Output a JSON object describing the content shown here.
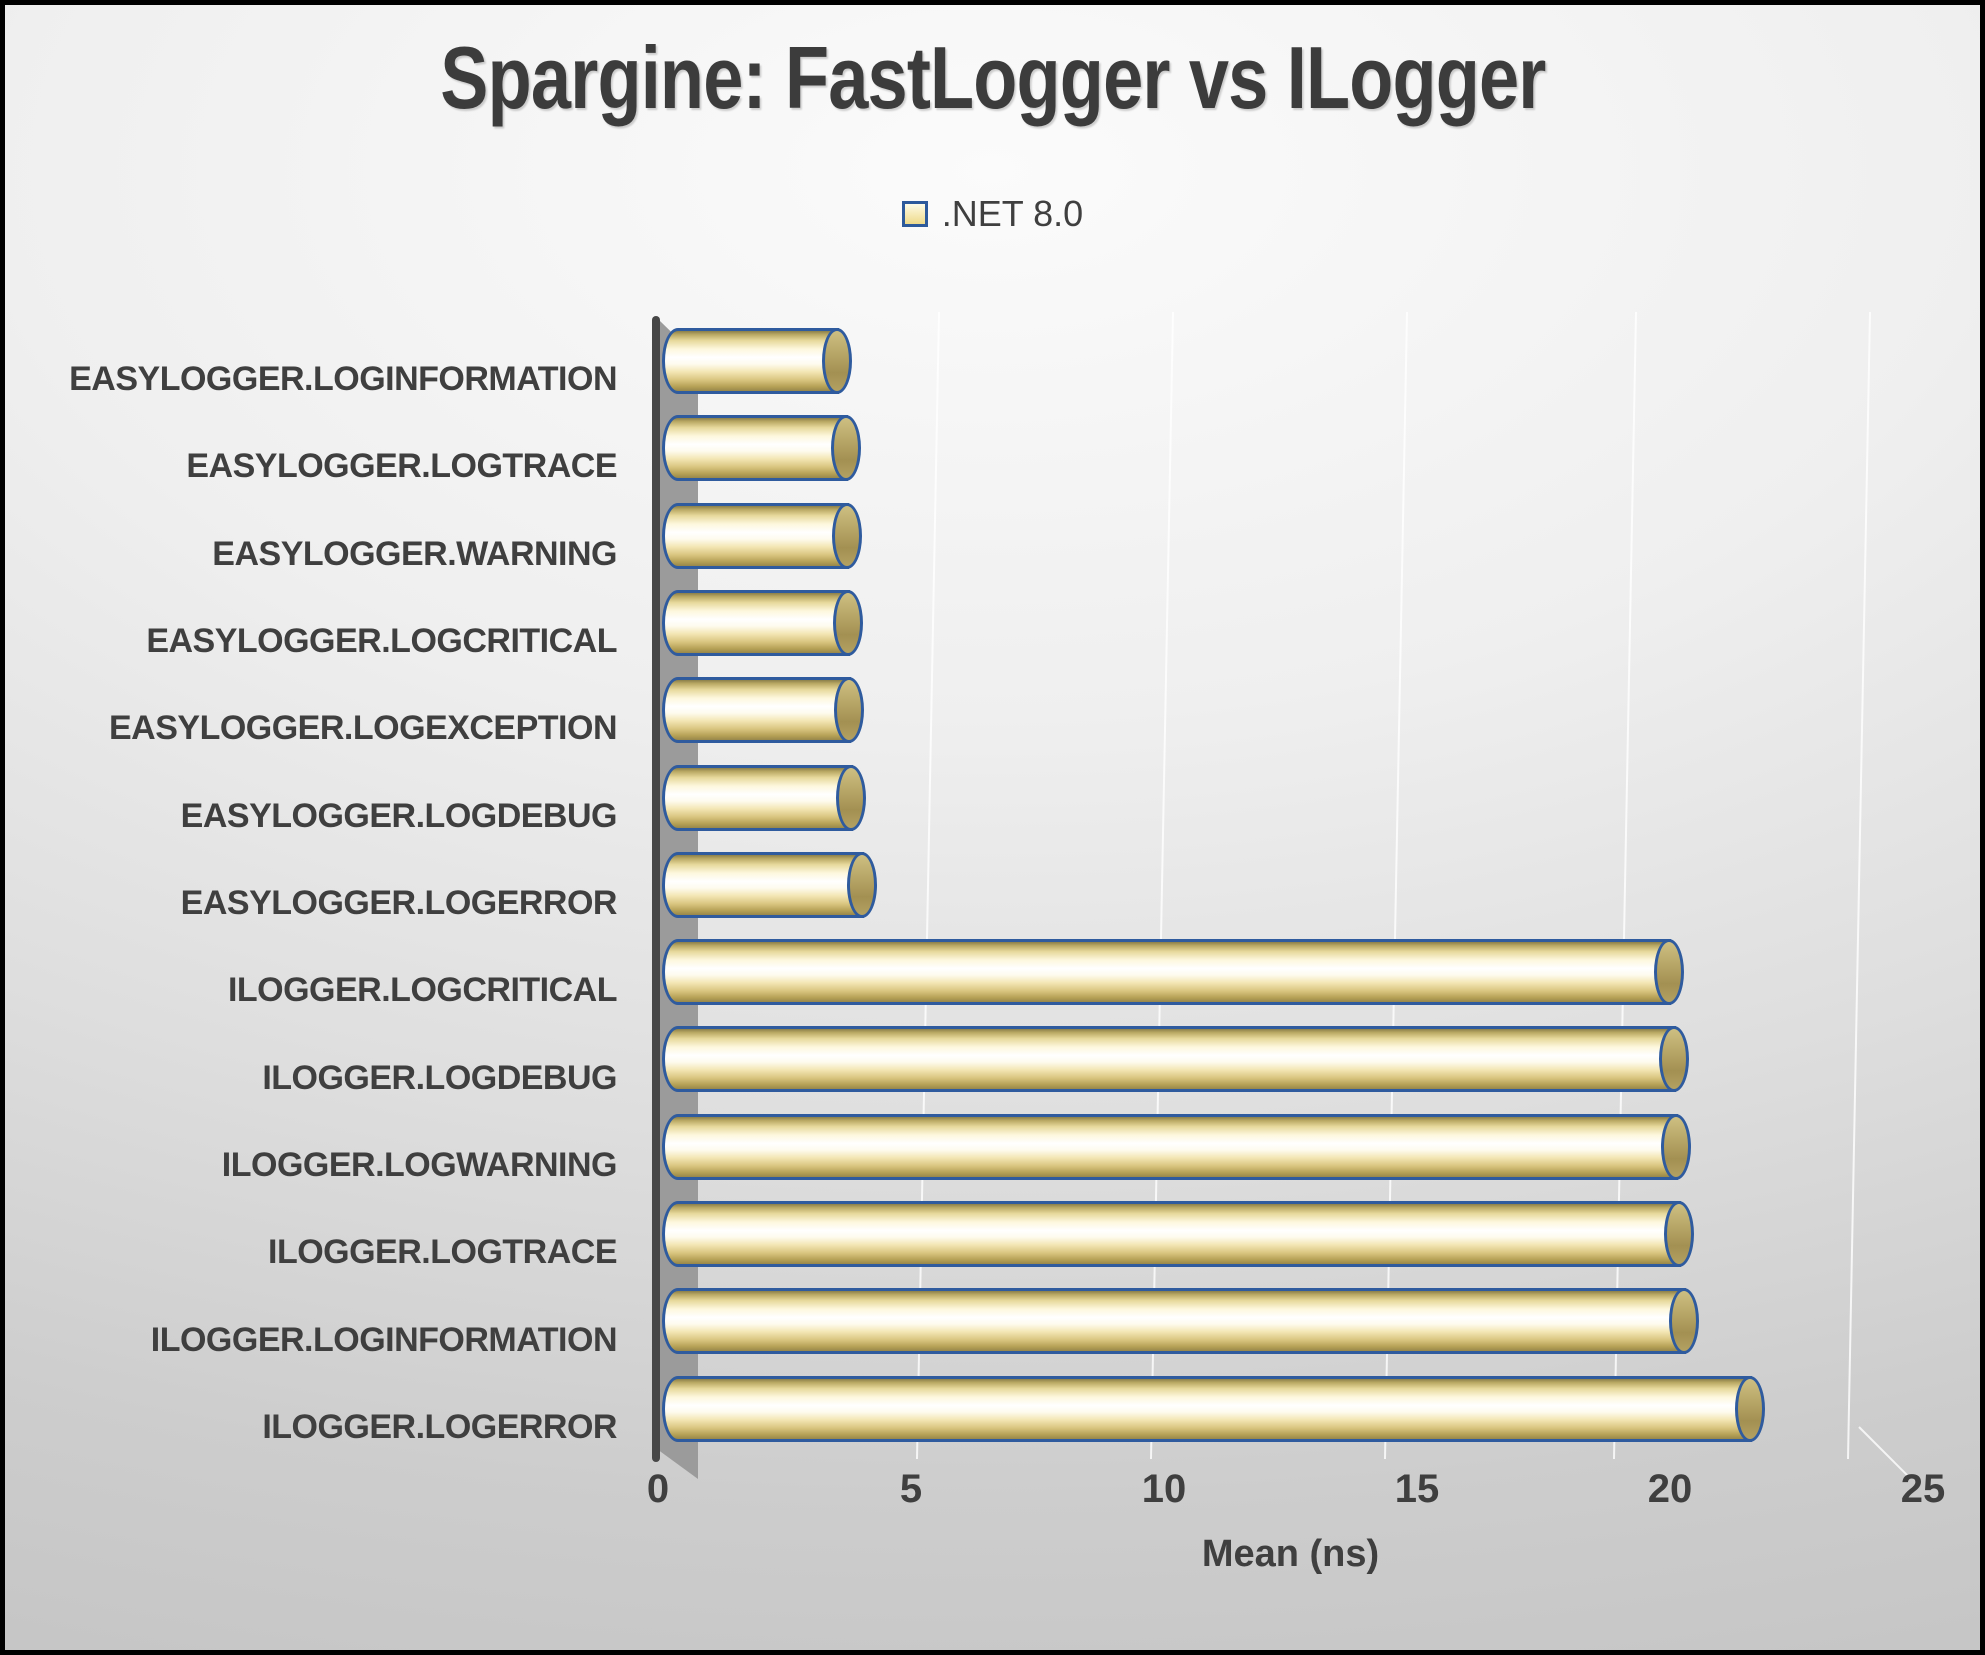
{
  "title": "Spargine: FastLogger vs ILogger",
  "legend": {
    "label": ".NET 8.0"
  },
  "x_axis": {
    "title": "Mean (ns)",
    "ticks": [
      0,
      5,
      10,
      15,
      20,
      25
    ],
    "max": 25
  },
  "chart_data": {
    "type": "bar",
    "orientation": "horizontal",
    "title": "Spargine: FastLogger vs ILogger",
    "series_name": ".NET 8.0",
    "categories": [
      "EASYLOGGER.LOGINFORMATION",
      "EASYLOGGER.LOGTRACE",
      "EASYLOGGER.WARNING",
      "EASYLOGGER.LOGCRITICAL",
      "EASYLOGGER.LOGEXCEPTION",
      "EASYLOGGER.LOGDEBUG",
      "EASYLOGGER.LOGERROR",
      "ILOGGER.LOGCRITICAL",
      "ILOGGER.LOGDEBUG",
      "ILOGGER.LOGWARNING",
      "ILOGGER.LOGTRACE",
      "ILOGGER.LOGINFORMATION",
      "ILOGGER.LOGERROR"
    ],
    "values": [
      3.75,
      3.93,
      3.95,
      3.97,
      4.0,
      4.03,
      4.24,
      20.2,
      20.3,
      20.33,
      20.4,
      20.5,
      21.8
    ],
    "xlabel": "Mean (ns)",
    "ylabel": "",
    "xlim": [
      0,
      25
    ],
    "grid": true,
    "legend_position": "top",
    "style": "3d-cylinder"
  },
  "colors": {
    "bar_fill_light": "#ffffff",
    "bar_fill_gold": "#d8c47e",
    "bar_border": "#2f5b9e",
    "axis_line": "#474747",
    "wall_shadow": "#9b9b9b",
    "text": "#3f3f3f",
    "background_top": "#fbfbfb",
    "background_bottom": "#c6c6c6",
    "gridline": "#ffffff"
  }
}
